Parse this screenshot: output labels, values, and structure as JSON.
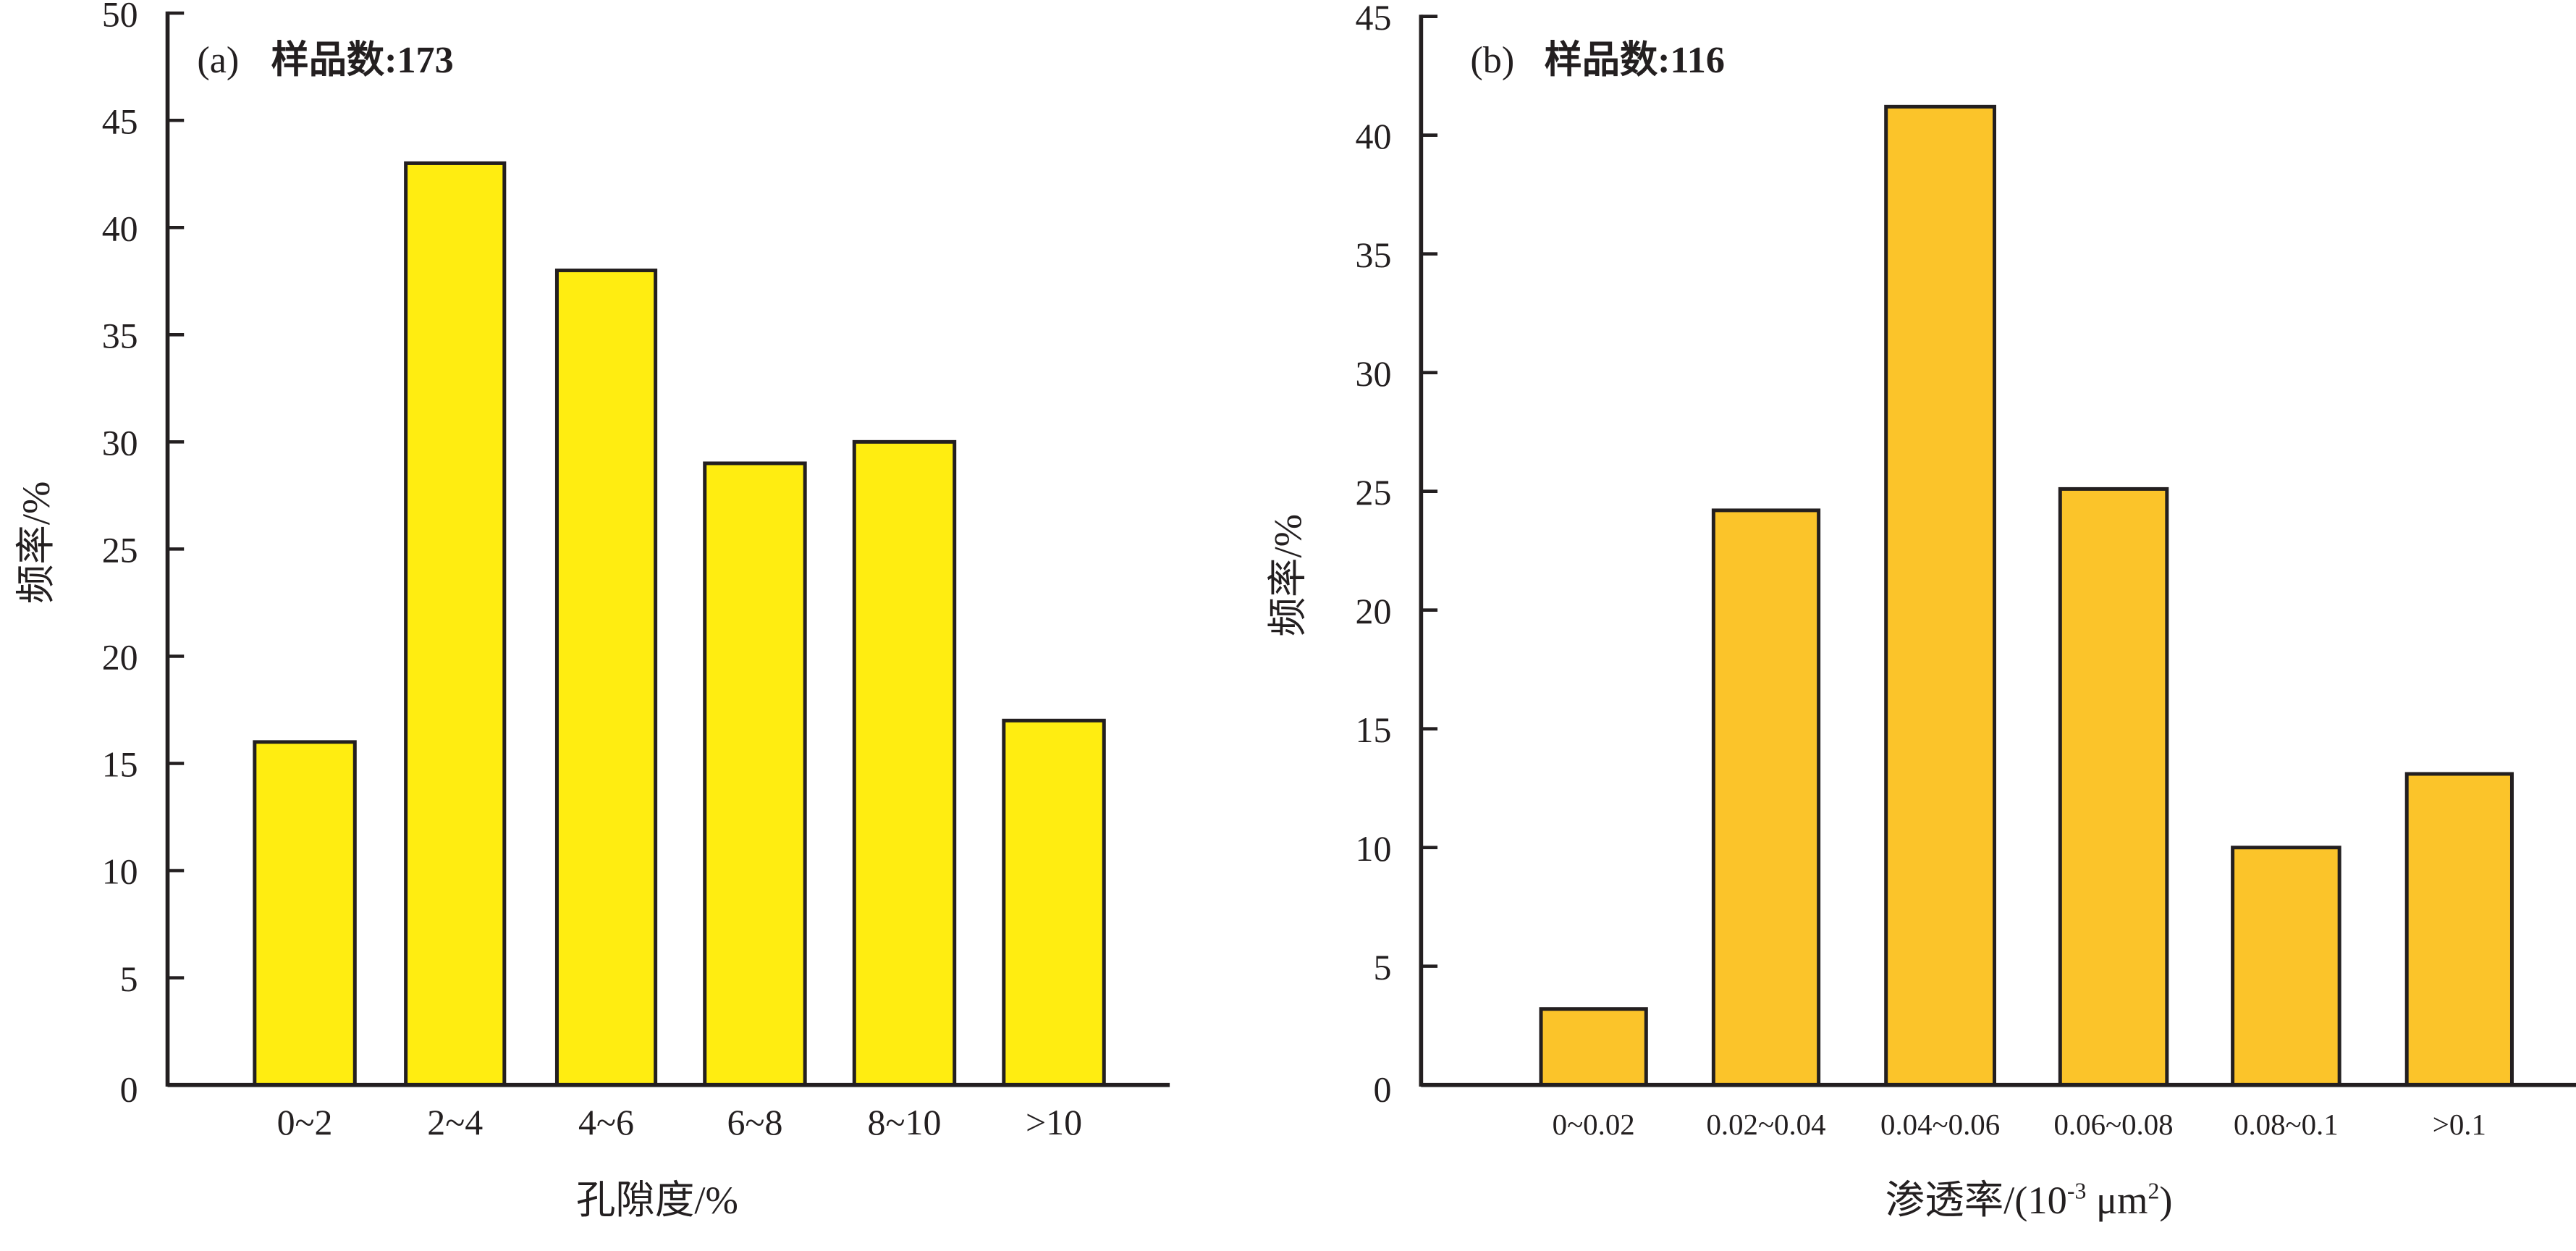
{
  "chart_data": [
    {
      "type": "bar",
      "panel": "(a)",
      "annotation": "样品数:173",
      "xlabel": "孔隙度/%",
      "ylabel": "频率/%",
      "categories": [
        "0~2",
        "2~4",
        "4~6",
        "6~8",
        "8~10",
        ">10"
      ],
      "values": [
        16,
        43,
        38,
        29,
        30,
        17
      ],
      "ylim": [
        0,
        50
      ],
      "yticks": [
        0,
        5,
        10,
        15,
        20,
        25,
        30,
        35,
        40,
        45,
        50
      ],
      "grid": false,
      "color": "#FFED11"
    },
    {
      "type": "bar",
      "panel": "(b)",
      "annotation": "样品数:116",
      "xlabel": "渗透率/(10",
      "xlabel_sup1": "-3",
      "xlabel_unit": " μm",
      "xlabel_sup2": "2",
      "xlabel_end": ")",
      "ylabel": "频率/%",
      "categories": [
        "0~0.02",
        "0.02~0.04",
        "0.04~0.06",
        "0.06~0.08",
        "0.08~0.1",
        ">0.1"
      ],
      "values": [
        3.2,
        24.2,
        41.2,
        25.1,
        10,
        13.1
      ],
      "ylim": [
        0,
        45
      ],
      "yticks": [
        0,
        5,
        10,
        15,
        20,
        25,
        30,
        35,
        40,
        45
      ],
      "grid": false,
      "color": "#FBC42A"
    }
  ]
}
